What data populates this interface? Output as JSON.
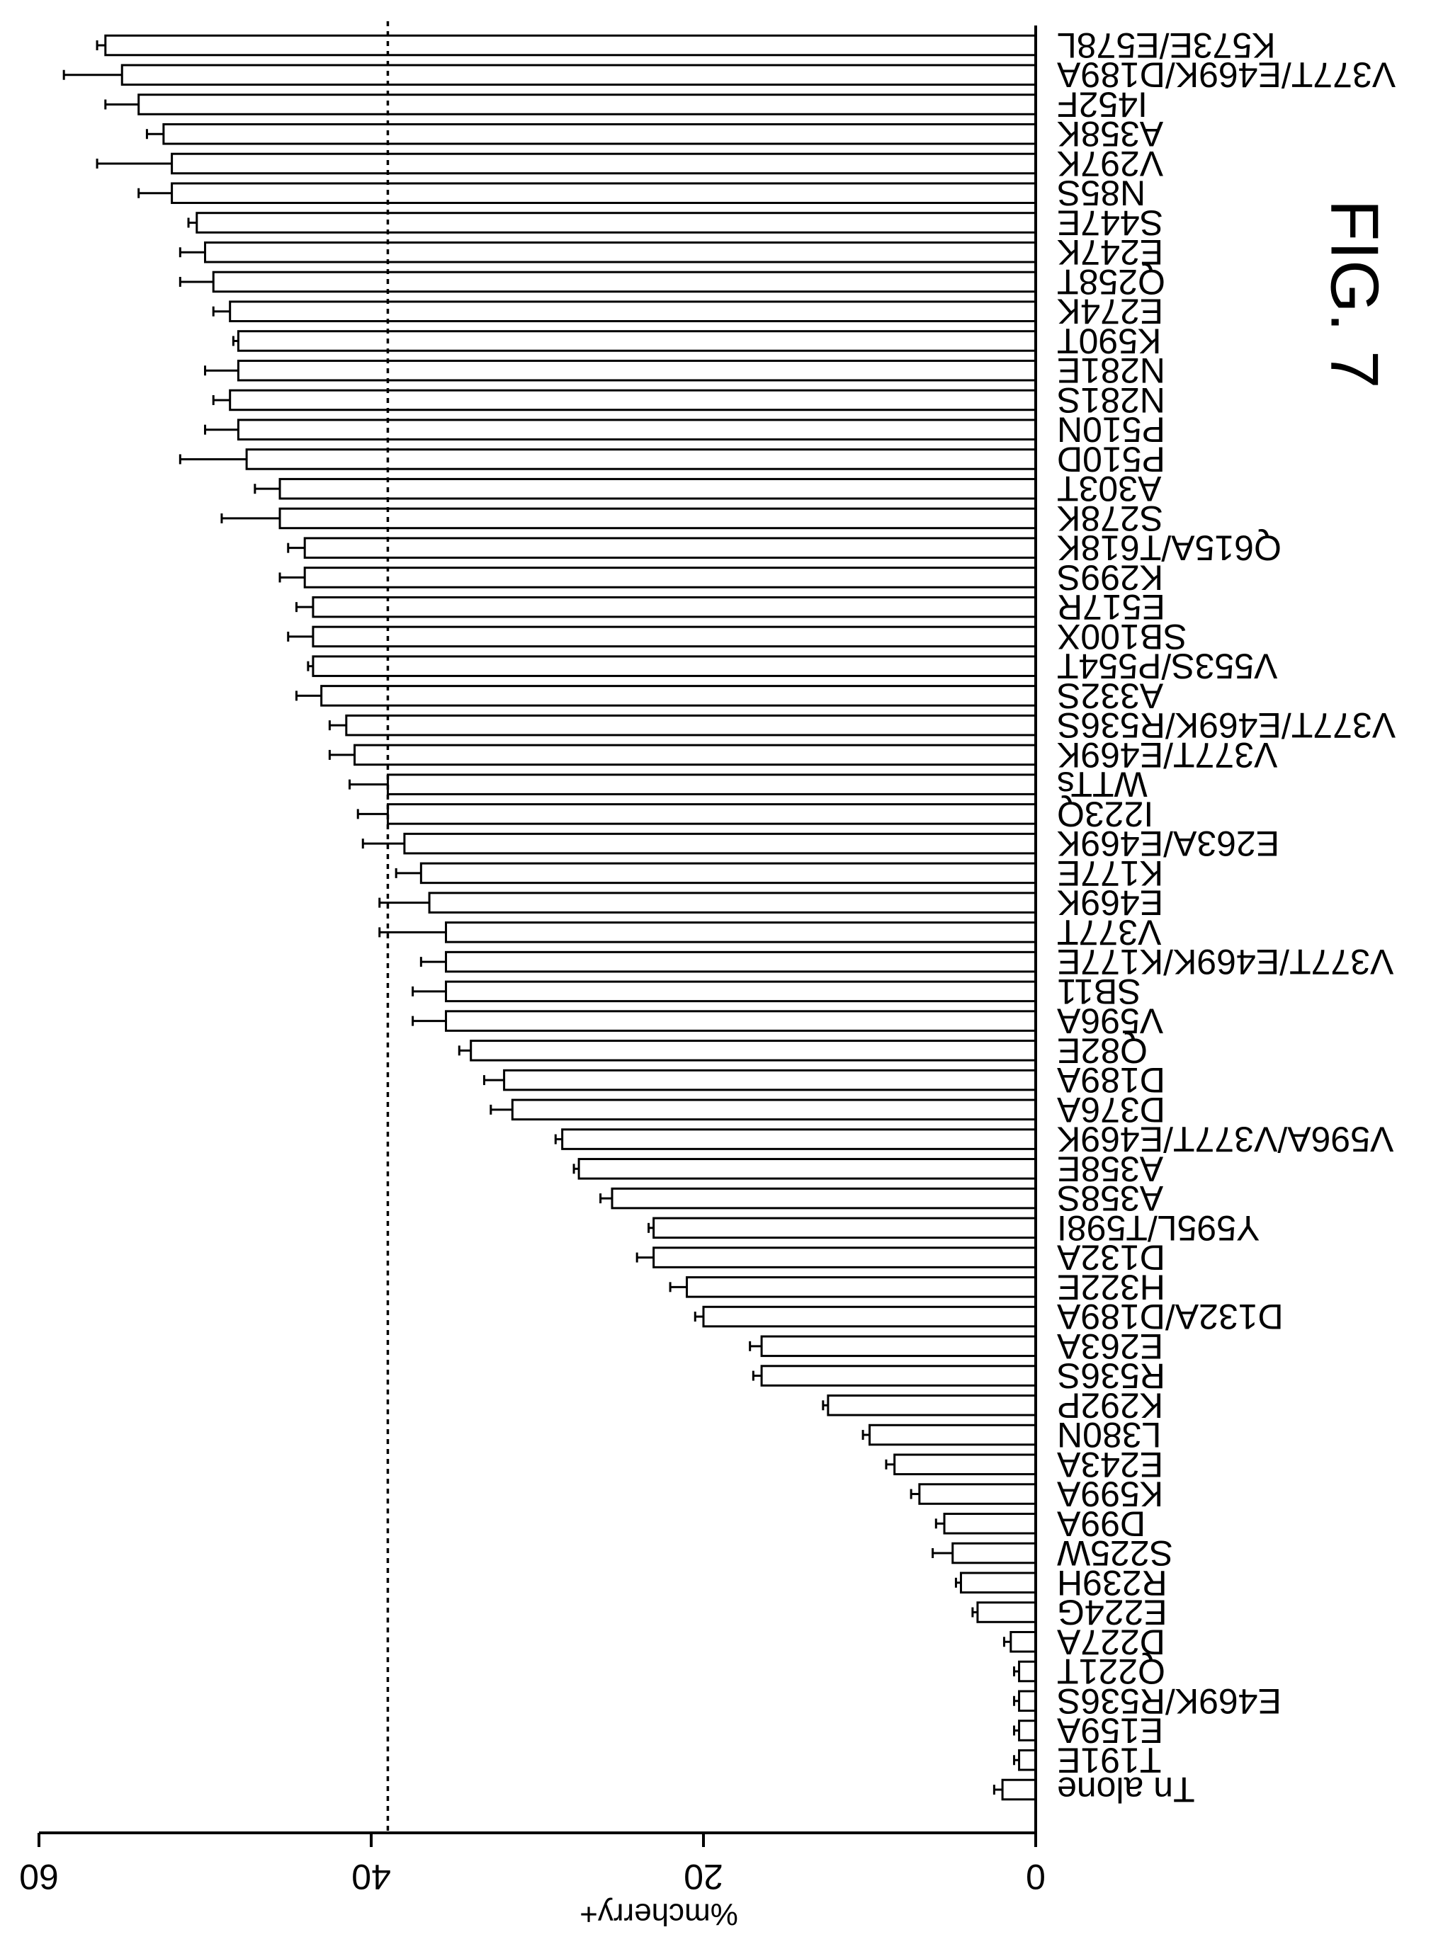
{
  "chart_data": {
    "type": "bar",
    "orientation": "horizontal",
    "title": "FIG. 7",
    "ylabel": "%mcherry+",
    "xlabel": "",
    "ylim": [
      0,
      60
    ],
    "yticks": [
      "0",
      "20",
      "40",
      "60"
    ],
    "reference_line": {
      "value": 39,
      "style": "dashed"
    },
    "grid": false,
    "legend": "none",
    "categories": [
      "Tn alone",
      "T191E",
      "E159A",
      "E469K/R536S",
      "Q221T",
      "D227A",
      "E224G",
      "R239H",
      "S225W",
      "D99A",
      "K599A",
      "E243A",
      "L380N",
      "K292P",
      "R536S",
      "E263A",
      "D132A/D189A",
      "H322E",
      "D132A",
      "Y595L/T598I",
      "A358S",
      "A358E",
      "V596A/V377T/E469K",
      "D376A",
      "D189A",
      "Q82E",
      "V596A",
      "SB11",
      "V377T/E469K/K177E",
      "V377T",
      "E469K",
      "K177E",
      "E263A/E469K",
      "I223Q",
      "WTTs",
      "V377T/E469K",
      "V377T/E469K/R536S",
      "A332S",
      "V553S/P554T",
      "SB100X",
      "E517R",
      "K299S",
      "Q615A/T618K",
      "S278K",
      "A303T",
      "P510D",
      "P510N",
      "N281S",
      "N281E",
      "K590T",
      "E274K",
      "Q258T",
      "E247K",
      "S447E",
      "N85S",
      "V297K",
      "A358K",
      "I452F",
      "V377T/E469K/D189A",
      "K573E/E578L"
    ],
    "values": [
      2,
      1,
      1,
      1,
      1,
      1.5,
      3.5,
      4.5,
      5,
      5.5,
      7,
      8.5,
      10,
      12.5,
      16.5,
      16.5,
      20,
      21,
      23,
      23,
      25.5,
      27.5,
      28.5,
      31.5,
      32,
      34,
      35.5,
      35.5,
      35.5,
      35.5,
      36.5,
      37,
      38,
      39,
      39,
      41,
      41.5,
      43,
      43.5,
      43.5,
      43.5,
      44,
      44,
      45.5,
      45.5,
      47.5,
      48,
      48.5,
      48,
      48,
      48.5,
      49.5,
      50,
      50.5,
      52,
      52,
      52.5,
      54,
      55,
      56
    ],
    "errors": [
      0.5,
      0.3,
      0.3,
      0.3,
      0.3,
      0.4,
      0.3,
      0.3,
      1.2,
      0.5,
      0.5,
      0.5,
      0.4,
      0.3,
      0.5,
      0.7,
      0.5,
      1.0,
      1.0,
      0.3,
      0.7,
      0.3,
      0.4,
      1.3,
      1.2,
      0.7,
      2.0,
      2.0,
      1.5,
      4.0,
      3.0,
      1.5,
      2.5,
      1.8,
      2.3,
      1.5,
      1.0,
      1.5,
      0.3,
      1.5,
      1.0,
      1.5,
      1.0,
      3.5,
      1.5,
      4.0,
      2.0,
      1.0,
      2.0,
      0.3,
      1.0,
      2.0,
      1.5,
      0.5,
      2.0,
      4.5,
      1.0,
      2.0,
      3.5,
      0.5
    ]
  }
}
